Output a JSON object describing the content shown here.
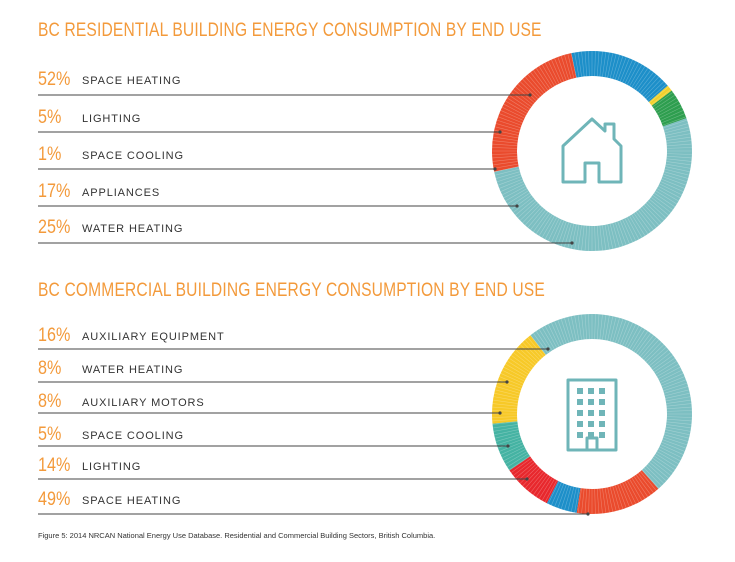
{
  "chart_data": [
    {
      "type": "pie",
      "title": "BC RESIDENTIAL BUILDING ENERGY CONSUMPTION BY END USE",
      "icon": "house-icon",
      "slices": [
        {
          "label": "SPACE HEATING",
          "pct_label": "52%",
          "value": 52,
          "color": "#7dbfc2"
        },
        {
          "label": "LIGHTING",
          "pct_label": "5%",
          "value": 5,
          "color": "#2e9e4f"
        },
        {
          "label": "SPACE COOLING",
          "pct_label": "1%",
          "value": 1,
          "color": "#f2d02c"
        },
        {
          "label": "APPLIANCES",
          "pct_label": "17%",
          "value": 17,
          "color": "#1d8fc9"
        },
        {
          "label": "WATER HEATING",
          "pct_label": "25%",
          "value": 25,
          "color": "#ea4b2d"
        }
      ]
    },
    {
      "type": "pie",
      "title": "BC COMMERCIAL BUILDING ENERGY CONSUMPTION BY END USE",
      "icon": "office-building-icon",
      "slices": [
        {
          "label": "AUXILIARY EQUIPMENT",
          "pct_label": "16%",
          "value": 16,
          "color": "#f7c928"
        },
        {
          "label": "WATER HEATING",
          "pct_label": "8%",
          "value": 8,
          "color": "#45b3a3"
        },
        {
          "label": "AUXILIARY MOTORS",
          "pct_label": "8%",
          "value": 8,
          "color": "#e8282d"
        },
        {
          "label": "SPACE COOLING",
          "pct_label": "5%",
          "value": 5,
          "color": "#1d8fc9"
        },
        {
          "label": "LIGHTING",
          "pct_label": "14%",
          "value": 14,
          "color": "#ea4b2d"
        },
        {
          "label": "SPACE HEATING",
          "pct_label": "49%",
          "value": 49,
          "color": "#7dbfc2"
        }
      ]
    }
  ],
  "colors": {
    "accent": "#f39a3b",
    "text": "#333333",
    "leader": "#444444"
  },
  "caption": "Figure 5: 2014 NRCAN National Energy Use Database. Residential and Commercial Building Sectors, British Columbia."
}
